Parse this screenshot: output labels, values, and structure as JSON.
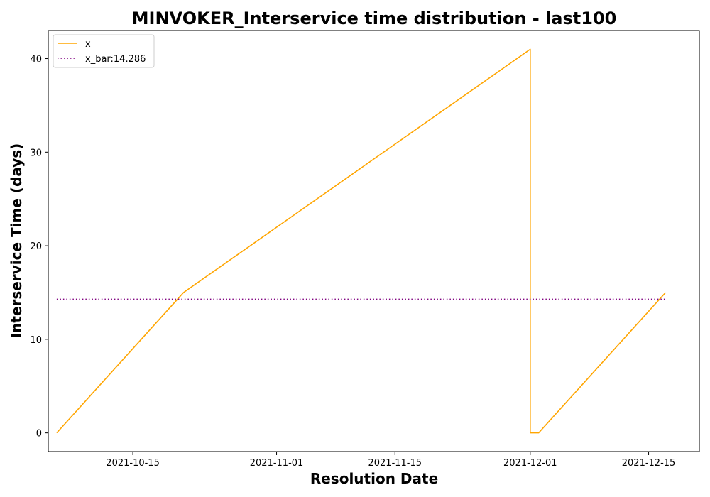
{
  "chart_data": {
    "type": "line",
    "title": "MINVOKER_Interservice time distribution - last100",
    "xlabel": "Resolution Date",
    "ylabel": "Interservice Time (days)",
    "x_ticks": [
      "2021-10-15",
      "2021-11-01",
      "2021-11-15",
      "2021-12-01",
      "2021-12-15"
    ],
    "y_ticks": [
      0,
      10,
      20,
      30,
      40
    ],
    "xlim": [
      "2021-10-05",
      "2021-12-21"
    ],
    "ylim": [
      -2,
      43
    ],
    "legend_position": "upper-left",
    "grid": false,
    "series": [
      {
        "name": "x",
        "color": "#ffa500",
        "style": "solid",
        "points": [
          {
            "x": "2021-10-06",
            "y": 0
          },
          {
            "x": "2021-10-21",
            "y": 15
          },
          {
            "x": "2021-12-01",
            "y": 41
          },
          {
            "x": "2021-12-01",
            "y": 0
          },
          {
            "x": "2021-12-02",
            "y": 0
          },
          {
            "x": "2021-12-17",
            "y": 15
          }
        ]
      },
      {
        "name": "x_bar:14.286",
        "color": "#800080",
        "style": "dotted",
        "points": [
          {
            "x": "2021-10-06",
            "y": 14.286
          },
          {
            "x": "2021-12-17",
            "y": 14.286
          }
        ]
      }
    ]
  }
}
